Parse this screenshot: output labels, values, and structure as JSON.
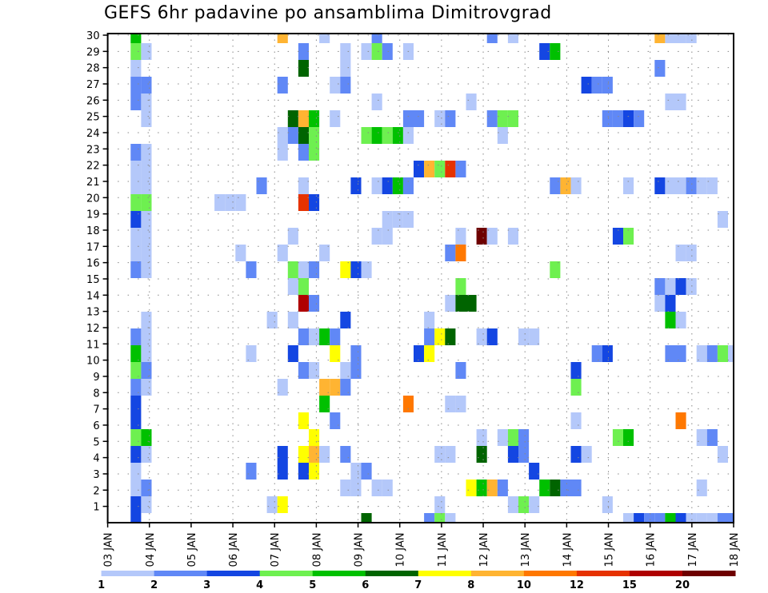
{
  "chart_data": {
    "type": "heatmap",
    "title": "GEFS 6hr padavine po ansamblima Dimitrovgrad",
    "xlabel": "",
    "ylabel": "",
    "x_step_hours": 6,
    "x_steps": 60,
    "x_tick_labels": [
      "03 JAN",
      "04 JAN",
      "05 JAN",
      "06 JAN",
      "07 JAN",
      "08 JAN",
      "09 JAN",
      "10 JAN",
      "11 JAN",
      "12 JAN",
      "13 JAN",
      "14 JAN",
      "15 JAN",
      "16 JAN",
      "17 JAN",
      "18 JAN"
    ],
    "y_tick_labels": [
      "1",
      "2",
      "3",
      "4",
      "5",
      "6",
      "7",
      "8",
      "9",
      "10",
      "11",
      "12",
      "13",
      "14",
      "15",
      "16",
      "17",
      "18",
      "19",
      "20",
      "21",
      "22",
      "23",
      "24",
      "25",
      "26",
      "27",
      "28",
      "29",
      "30"
    ],
    "grid": true,
    "legend_placement": "bottom",
    "levels": [
      {
        "min": 1,
        "color": "#b4c8fa"
      },
      {
        "min": 2,
        "color": "#6088f6"
      },
      {
        "min": 3,
        "color": "#1446e2"
      },
      {
        "min": 4,
        "color": "#6ef050"
      },
      {
        "min": 5,
        "color": "#00c000"
      },
      {
        "min": 6,
        "color": "#006400"
      },
      {
        "min": 7,
        "color": "#ffff00"
      },
      {
        "min": 8,
        "color": "#ffb432"
      },
      {
        "min": 10,
        "color": "#ff7800"
      },
      {
        "min": 12,
        "color": "#e63200"
      },
      {
        "min": 15,
        "color": "#af0000"
      },
      {
        "min": 20,
        "color": "#6e0000"
      }
    ],
    "colorbar_labels": [
      "1",
      "2",
      "3",
      "4",
      "5",
      "6",
      "7",
      "8",
      "10",
      "12",
      "15",
      "20"
    ],
    "cells_format": [
      "member",
      "step",
      "level_min"
    ],
    "cells": [
      [
        30,
        2,
        5
      ],
      [
        30,
        16,
        8
      ],
      [
        30,
        20,
        1
      ],
      [
        30,
        25,
        2
      ],
      [
        30,
        36,
        2
      ],
      [
        30,
        38,
        1
      ],
      [
        30,
        52,
        8
      ],
      [
        30,
        53,
        1
      ],
      [
        30,
        54,
        1
      ],
      [
        30,
        55,
        1
      ],
      [
        29,
        2,
        4
      ],
      [
        29,
        3,
        1
      ],
      [
        29,
        18,
        2
      ],
      [
        29,
        22,
        1
      ],
      [
        29,
        24,
        1
      ],
      [
        29,
        25,
        4
      ],
      [
        29,
        26,
        2
      ],
      [
        29,
        28,
        1
      ],
      [
        29,
        41,
        3
      ],
      [
        29,
        42,
        5
      ],
      [
        28,
        2,
        1
      ],
      [
        28,
        18,
        6
      ],
      [
        28,
        22,
        1
      ],
      [
        28,
        52,
        2
      ],
      [
        27,
        2,
        2
      ],
      [
        27,
        3,
        2
      ],
      [
        27,
        16,
        2
      ],
      [
        27,
        21,
        1
      ],
      [
        27,
        22,
        2
      ],
      [
        27,
        45,
        3
      ],
      [
        27,
        46,
        2
      ],
      [
        27,
        47,
        2
      ],
      [
        26,
        2,
        2
      ],
      [
        26,
        3,
        1
      ],
      [
        26,
        25,
        1
      ],
      [
        26,
        34,
        1
      ],
      [
        26,
        53,
        1
      ],
      [
        26,
        54,
        1
      ],
      [
        25,
        3,
        1
      ],
      [
        25,
        17,
        6
      ],
      [
        25,
        18,
        8
      ],
      [
        25,
        19,
        5
      ],
      [
        25,
        21,
        1
      ],
      [
        25,
        28,
        2
      ],
      [
        25,
        29,
        2
      ],
      [
        25,
        31,
        1
      ],
      [
        25,
        32,
        2
      ],
      [
        25,
        36,
        2
      ],
      [
        25,
        37,
        4
      ],
      [
        25,
        38,
        4
      ],
      [
        25,
        47,
        2
      ],
      [
        25,
        48,
        2
      ],
      [
        25,
        49,
        3
      ],
      [
        25,
        50,
        2
      ],
      [
        24,
        16,
        1
      ],
      [
        24,
        17,
        2
      ],
      [
        24,
        18,
        6
      ],
      [
        24,
        19,
        4
      ],
      [
        24,
        24,
        4
      ],
      [
        24,
        25,
        5
      ],
      [
        24,
        26,
        4
      ],
      [
        24,
        27,
        5
      ],
      [
        24,
        28,
        1
      ],
      [
        24,
        37,
        1
      ],
      [
        23,
        2,
        2
      ],
      [
        23,
        3,
        1
      ],
      [
        23,
        16,
        1
      ],
      [
        23,
        18,
        2
      ],
      [
        23,
        19,
        4
      ],
      [
        22,
        2,
        1
      ],
      [
        22,
        3,
        1
      ],
      [
        22,
        29,
        3
      ],
      [
        22,
        30,
        8
      ],
      [
        22,
        31,
        4
      ],
      [
        22,
        32,
        12
      ],
      [
        22,
        33,
        2
      ],
      [
        21,
        2,
        1
      ],
      [
        21,
        3,
        1
      ],
      [
        21,
        14,
        2
      ],
      [
        21,
        18,
        1
      ],
      [
        21,
        23,
        3
      ],
      [
        21,
        25,
        1
      ],
      [
        21,
        26,
        3
      ],
      [
        21,
        27,
        5
      ],
      [
        21,
        28,
        2
      ],
      [
        21,
        42,
        2
      ],
      [
        21,
        43,
        8
      ],
      [
        21,
        44,
        1
      ],
      [
        21,
        49,
        1
      ],
      [
        21,
        52,
        3
      ],
      [
        21,
        53,
        1
      ],
      [
        21,
        54,
        1
      ],
      [
        21,
        55,
        2
      ],
      [
        21,
        56,
        1
      ],
      [
        21,
        57,
        1
      ],
      [
        20,
        2,
        4
      ],
      [
        20,
        3,
        4
      ],
      [
        20,
        10,
        1
      ],
      [
        20,
        11,
        1
      ],
      [
        20,
        12,
        1
      ],
      [
        20,
        18,
        12
      ],
      [
        20,
        19,
        3
      ],
      [
        19,
        2,
        3
      ],
      [
        19,
        3,
        1
      ],
      [
        19,
        26,
        1
      ],
      [
        19,
        27,
        1
      ],
      [
        19,
        28,
        1
      ],
      [
        19,
        58,
        1
      ],
      [
        18,
        2,
        1
      ],
      [
        18,
        3,
        1
      ],
      [
        18,
        17,
        1
      ],
      [
        18,
        25,
        1
      ],
      [
        18,
        26,
        1
      ],
      [
        18,
        33,
        1
      ],
      [
        18,
        35,
        20
      ],
      [
        18,
        36,
        1
      ],
      [
        18,
        38,
        1
      ],
      [
        18,
        48,
        3
      ],
      [
        18,
        49,
        4
      ],
      [
        17,
        2,
        1
      ],
      [
        17,
        3,
        1
      ],
      [
        17,
        12,
        1
      ],
      [
        17,
        16,
        1
      ],
      [
        17,
        20,
        1
      ],
      [
        17,
        32,
        2
      ],
      [
        17,
        33,
        10
      ],
      [
        17,
        54,
        1
      ],
      [
        17,
        55,
        1
      ],
      [
        16,
        2,
        2
      ],
      [
        16,
        3,
        1
      ],
      [
        16,
        13,
        2
      ],
      [
        16,
        17,
        4
      ],
      [
        16,
        18,
        1
      ],
      [
        16,
        19,
        2
      ],
      [
        16,
        22,
        7
      ],
      [
        16,
        23,
        3
      ],
      [
        16,
        24,
        1
      ],
      [
        16,
        42,
        4
      ],
      [
        15,
        17,
        1
      ],
      [
        15,
        18,
        4
      ],
      [
        15,
        33,
        4
      ],
      [
        15,
        52,
        2
      ],
      [
        15,
        53,
        1
      ],
      [
        15,
        54,
        3
      ],
      [
        15,
        55,
        1
      ],
      [
        14,
        18,
        15
      ],
      [
        14,
        19,
        2
      ],
      [
        14,
        32,
        1
      ],
      [
        14,
        33,
        6
      ],
      [
        14,
        34,
        6
      ],
      [
        14,
        52,
        1
      ],
      [
        14,
        53,
        3
      ],
      [
        13,
        3,
        1
      ],
      [
        13,
        15,
        1
      ],
      [
        13,
        17,
        1
      ],
      [
        13,
        22,
        3
      ],
      [
        13,
        30,
        1
      ],
      [
        13,
        53,
        5
      ],
      [
        13,
        54,
        1
      ],
      [
        12,
        2,
        2
      ],
      [
        12,
        3,
        1
      ],
      [
        12,
        18,
        2
      ],
      [
        12,
        19,
        1
      ],
      [
        12,
        20,
        5
      ],
      [
        12,
        21,
        2
      ],
      [
        12,
        30,
        2
      ],
      [
        12,
        31,
        7
      ],
      [
        12,
        32,
        6
      ],
      [
        12,
        35,
        1
      ],
      [
        12,
        36,
        3
      ],
      [
        12,
        39,
        1
      ],
      [
        12,
        40,
        1
      ],
      [
        11,
        2,
        5
      ],
      [
        11,
        3,
        1
      ],
      [
        11,
        13,
        1
      ],
      [
        11,
        17,
        3
      ],
      [
        11,
        21,
        7
      ],
      [
        11,
        23,
        2
      ],
      [
        11,
        29,
        3
      ],
      [
        11,
        30,
        7
      ],
      [
        11,
        46,
        2
      ],
      [
        11,
        47,
        3
      ],
      [
        11,
        53,
        2
      ],
      [
        11,
        54,
        2
      ],
      [
        11,
        56,
        1
      ],
      [
        11,
        57,
        2
      ],
      [
        11,
        58,
        4
      ],
      [
        11,
        59,
        1
      ],
      [
        10,
        2,
        4
      ],
      [
        10,
        3,
        2
      ],
      [
        10,
        18,
        2
      ],
      [
        10,
        19,
        1
      ],
      [
        10,
        22,
        1
      ],
      [
        10,
        23,
        2
      ],
      [
        10,
        33,
        2
      ],
      [
        10,
        44,
        3
      ],
      [
        9,
        2,
        2
      ],
      [
        9,
        3,
        1
      ],
      [
        9,
        16,
        1
      ],
      [
        9,
        20,
        8
      ],
      [
        9,
        21,
        8
      ],
      [
        9,
        22,
        2
      ],
      [
        9,
        44,
        4
      ],
      [
        8,
        2,
        3
      ],
      [
        8,
        20,
        5
      ],
      [
        8,
        28,
        10
      ],
      [
        8,
        32,
        1
      ],
      [
        8,
        33,
        1
      ],
      [
        7,
        2,
        3
      ],
      [
        7,
        18,
        7
      ],
      [
        7,
        21,
        2
      ],
      [
        7,
        44,
        1
      ],
      [
        7,
        54,
        10
      ],
      [
        6,
        2,
        4
      ],
      [
        6,
        3,
        5
      ],
      [
        6,
        19,
        7
      ],
      [
        6,
        35,
        1
      ],
      [
        6,
        37,
        1
      ],
      [
        6,
        38,
        4
      ],
      [
        6,
        39,
        2
      ],
      [
        6,
        48,
        4
      ],
      [
        6,
        49,
        5
      ],
      [
        6,
        56,
        1
      ],
      [
        6,
        57,
        2
      ],
      [
        5,
        2,
        3
      ],
      [
        5,
        3,
        1
      ],
      [
        5,
        16,
        3
      ],
      [
        5,
        18,
        7
      ],
      [
        5,
        19,
        8
      ],
      [
        5,
        20,
        1
      ],
      [
        5,
        22,
        2
      ],
      [
        5,
        31,
        1
      ],
      [
        5,
        32,
        1
      ],
      [
        5,
        35,
        6
      ],
      [
        5,
        38,
        3
      ],
      [
        5,
        39,
        2
      ],
      [
        5,
        44,
        3
      ],
      [
        5,
        45,
        1
      ],
      [
        5,
        58,
        1
      ],
      [
        4,
        2,
        1
      ],
      [
        4,
        13,
        2
      ],
      [
        4,
        16,
        3
      ],
      [
        4,
        18,
        3
      ],
      [
        4,
        19,
        7
      ],
      [
        4,
        23,
        1
      ],
      [
        4,
        24,
        2
      ],
      [
        4,
        40,
        3
      ],
      [
        3,
        2,
        1
      ],
      [
        3,
        3,
        2
      ],
      [
        3,
        22,
        1
      ],
      [
        3,
        23,
        1
      ],
      [
        3,
        25,
        1
      ],
      [
        3,
        26,
        1
      ],
      [
        3,
        34,
        7
      ],
      [
        3,
        35,
        5
      ],
      [
        3,
        36,
        8
      ],
      [
        3,
        37,
        2
      ],
      [
        3,
        41,
        5
      ],
      [
        3,
        42,
        6
      ],
      [
        3,
        43,
        2
      ],
      [
        3,
        44,
        2
      ],
      [
        3,
        56,
        1
      ],
      [
        2,
        2,
        3
      ],
      [
        2,
        3,
        1
      ],
      [
        2,
        15,
        1
      ],
      [
        2,
        16,
        7
      ],
      [
        2,
        31,
        1
      ],
      [
        2,
        38,
        1
      ],
      [
        2,
        39,
        4
      ],
      [
        2,
        40,
        1
      ],
      [
        2,
        47,
        1
      ],
      [
        1,
        2,
        3
      ],
      [
        1,
        24,
        6
      ],
      [
        1,
        30,
        2
      ],
      [
        1,
        31,
        4
      ],
      [
        1,
        32,
        1
      ],
      [
        1,
        49,
        1
      ],
      [
        1,
        50,
        3
      ],
      [
        1,
        51,
        2
      ],
      [
        1,
        52,
        2
      ],
      [
        1,
        53,
        5
      ],
      [
        1,
        54,
        3
      ],
      [
        1,
        55,
        1
      ],
      [
        1,
        56,
        1
      ],
      [
        1,
        57,
        1
      ],
      [
        1,
        58,
        2
      ],
      [
        1,
        59,
        2
      ]
    ]
  }
}
